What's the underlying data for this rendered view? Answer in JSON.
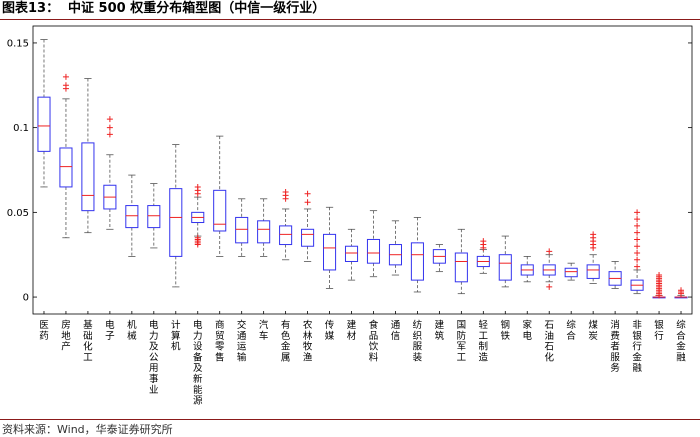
{
  "header": {
    "figure_label": "图表13：",
    "title": "中证 500 权重分布箱型图（中信一级行业）"
  },
  "footer": {
    "source": "资料来源：Wind，华泰证券研究所"
  },
  "colors": {
    "box": "#3333ee",
    "median": "#ee2222",
    "outlier": "#ee2222",
    "whisker": "#555555",
    "axis": "#000000",
    "title_rule": "#8b1a1a"
  },
  "chart_data": {
    "type": "boxplot",
    "title": "",
    "xlabel": "",
    "ylabel": "",
    "ylim": [
      -0.01,
      0.16
    ],
    "yticks": [
      0,
      0.05,
      0.1,
      0.15
    ],
    "ytick_labels": [
      "0",
      "0.05",
      "0.1",
      "0.15"
    ],
    "grid": false,
    "legend": "none",
    "categories": [
      "医药",
      "房地产",
      "基础化工",
      "电子",
      "机械",
      "电力及公用事业",
      "计算机",
      "电力设备及新能源",
      "商贸零售",
      "交通运输",
      "汽车",
      "有色金属",
      "农林牧渔",
      "传媒",
      "建材",
      "食品饮料",
      "通信",
      "纺织服装",
      "建筑",
      "国防军工",
      "轻工制造",
      "钢铁",
      "家电",
      "石油石化",
      "综合",
      "煤炭",
      "消费者服务",
      "非银行金融",
      "银行",
      "综合金融"
    ],
    "boxes": [
      {
        "min": 0.065,
        "q1": 0.086,
        "median": 0.101,
        "q3": 0.118,
        "max": 0.152,
        "outliers": []
      },
      {
        "min": 0.035,
        "q1": 0.065,
        "median": 0.077,
        "q3": 0.088,
        "max": 0.117,
        "outliers": [
          0.123,
          0.125,
          0.13
        ]
      },
      {
        "min": 0.038,
        "q1": 0.051,
        "median": 0.06,
        "q3": 0.091,
        "max": 0.129,
        "outliers": []
      },
      {
        "min": 0.04,
        "q1": 0.052,
        "median": 0.059,
        "q3": 0.066,
        "max": 0.084,
        "outliers": [
          0.096,
          0.1,
          0.105
        ]
      },
      {
        "min": 0.024,
        "q1": 0.041,
        "median": 0.048,
        "q3": 0.054,
        "max": 0.072,
        "outliers": []
      },
      {
        "min": 0.029,
        "q1": 0.041,
        "median": 0.048,
        "q3": 0.054,
        "max": 0.067,
        "outliers": []
      },
      {
        "min": 0.006,
        "q1": 0.024,
        "median": 0.047,
        "q3": 0.064,
        "max": 0.09,
        "outliers": []
      },
      {
        "min": 0.036,
        "q1": 0.044,
        "median": 0.047,
        "q3": 0.05,
        "max": 0.059,
        "outliers": [
          0.031,
          0.032,
          0.033,
          0.034,
          0.035,
          0.061,
          0.063,
          0.065
        ]
      },
      {
        "min": 0.024,
        "q1": 0.039,
        "median": 0.043,
        "q3": 0.063,
        "max": 0.095,
        "outliers": []
      },
      {
        "min": 0.024,
        "q1": 0.032,
        "median": 0.04,
        "q3": 0.047,
        "max": 0.058,
        "outliers": []
      },
      {
        "min": 0.024,
        "q1": 0.032,
        "median": 0.04,
        "q3": 0.045,
        "max": 0.058,
        "outliers": []
      },
      {
        "min": 0.022,
        "q1": 0.031,
        "median": 0.037,
        "q3": 0.042,
        "max": 0.052,
        "outliers": [
          0.058,
          0.06,
          0.062
        ]
      },
      {
        "min": 0.021,
        "q1": 0.03,
        "median": 0.037,
        "q3": 0.04,
        "max": 0.052,
        "outliers": [
          0.056,
          0.061
        ]
      },
      {
        "min": 0.005,
        "q1": 0.016,
        "median": 0.029,
        "q3": 0.037,
        "max": 0.053,
        "outliers": []
      },
      {
        "min": 0.01,
        "q1": 0.021,
        "median": 0.026,
        "q3": 0.03,
        "max": 0.04,
        "outliers": []
      },
      {
        "min": 0.012,
        "q1": 0.02,
        "median": 0.026,
        "q3": 0.034,
        "max": 0.051,
        "outliers": []
      },
      {
        "min": 0.013,
        "q1": 0.019,
        "median": 0.025,
        "q3": 0.031,
        "max": 0.045,
        "outliers": []
      },
      {
        "min": 0.003,
        "q1": 0.01,
        "median": 0.025,
        "q3": 0.032,
        "max": 0.047,
        "outliers": []
      },
      {
        "min": 0.015,
        "q1": 0.02,
        "median": 0.024,
        "q3": 0.028,
        "max": 0.031,
        "outliers": []
      },
      {
        "min": 0.002,
        "q1": 0.009,
        "median": 0.021,
        "q3": 0.026,
        "max": 0.04,
        "outliers": []
      },
      {
        "min": 0.014,
        "q1": 0.018,
        "median": 0.021,
        "q3": 0.024,
        "max": 0.028,
        "outliers": [
          0.029,
          0.031,
          0.033
        ]
      },
      {
        "min": 0.006,
        "q1": 0.01,
        "median": 0.02,
        "q3": 0.025,
        "max": 0.036,
        "outliers": []
      },
      {
        "min": 0.009,
        "q1": 0.013,
        "median": 0.016,
        "q3": 0.019,
        "max": 0.024,
        "outliers": []
      },
      {
        "min": 0.009,
        "q1": 0.013,
        "median": 0.016,
        "q3": 0.019,
        "max": 0.025,
        "outliers": [
          0.027,
          0.006
        ]
      },
      {
        "min": 0.01,
        "q1": 0.012,
        "median": 0.015,
        "q3": 0.017,
        "max": 0.02,
        "outliers": []
      },
      {
        "min": 0.008,
        "q1": 0.011,
        "median": 0.016,
        "q3": 0.019,
        "max": 0.025,
        "outliers": [
          0.029,
          0.031,
          0.033,
          0.035,
          0.037
        ]
      },
      {
        "min": 0.005,
        "q1": 0.007,
        "median": 0.011,
        "q3": 0.015,
        "max": 0.021,
        "outliers": []
      },
      {
        "min": 0.002,
        "q1": 0.004,
        "median": 0.007,
        "q3": 0.01,
        "max": 0.016,
        "outliers": [
          0.018,
          0.022,
          0.026,
          0.03,
          0.034,
          0.038,
          0.042,
          0.046,
          0.05
        ]
      },
      {
        "min": 0.0,
        "q1": 0.0,
        "median": 0.0,
        "q3": 0.0,
        "max": 0.001,
        "outliers": [
          0.001,
          0.002,
          0.003,
          0.004,
          0.005,
          0.006,
          0.007,
          0.008,
          0.009,
          0.01,
          0.011,
          0.012,
          0.013
        ]
      },
      {
        "min": 0.0,
        "q1": 0.0,
        "median": 0.0,
        "q3": 0.0,
        "max": 0.001,
        "outliers": [
          0.002,
          0.003,
          0.004
        ]
      }
    ]
  }
}
